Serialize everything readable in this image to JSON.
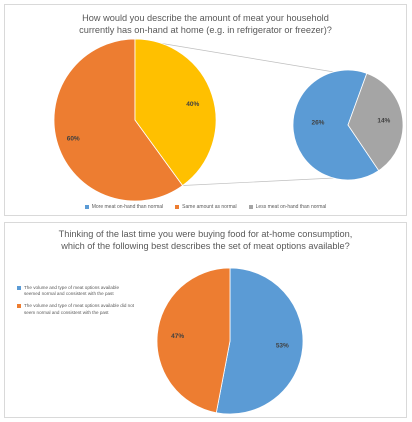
{
  "chart_data": [
    {
      "type": "pie",
      "title_lines": [
        "How would you describe the amount of meat your household",
        "currently has on-hand at home (e.g. in refrigerator or freezer)?"
      ],
      "main_pie": [
        {
          "name": "More meat on-hand than normal",
          "value": 40,
          "label": "40%"
        },
        {
          "name": "Same amount as normal",
          "value": 60,
          "label": "60%"
        }
      ],
      "secondary_pie": [
        {
          "name": "More meat on-hand than normal",
          "value": 26,
          "label": "26%"
        },
        {
          "name": "Less meat on-hand than normal",
          "value": 14,
          "label": "14%"
        }
      ],
      "legend": [
        {
          "label": "More meat on-hand than normal",
          "color": "#5b9bd5"
        },
        {
          "label": "Same amount as normal",
          "color": "#ed7d31"
        },
        {
          "label": "Less meat on-hand than normal",
          "color": "#a5a5a5"
        }
      ],
      "legend_position": "bottom",
      "colors": {
        "main_highlight": "#ffc000",
        "same": "#ed7d31",
        "more": "#5b9bd5",
        "less": "#a5a5a5"
      }
    },
    {
      "type": "pie",
      "title_lines": [
        "Thinking of the last time you were buying food for at-home consumption,",
        "which of the following best describes the set of meat options available?"
      ],
      "slices": [
        {
          "name": "The volume and type of meat options available seemed normal and consistent with the past",
          "value": 53,
          "label": "53%",
          "color": "#5b9bd5"
        },
        {
          "name": "The volume and type of meat options available did not seem normal and consistent with the past",
          "value": 47,
          "label": "47%",
          "color": "#ed7d31"
        }
      ],
      "legend": [
        {
          "label": "The volume and type of meat options available seemed normal and consistent with the past",
          "color": "#5b9bd5"
        },
        {
          "label": "The volume and type of meat options available did not seem normal and consistent with the past",
          "color": "#ed7d31"
        }
      ],
      "legend_position": "left"
    }
  ]
}
